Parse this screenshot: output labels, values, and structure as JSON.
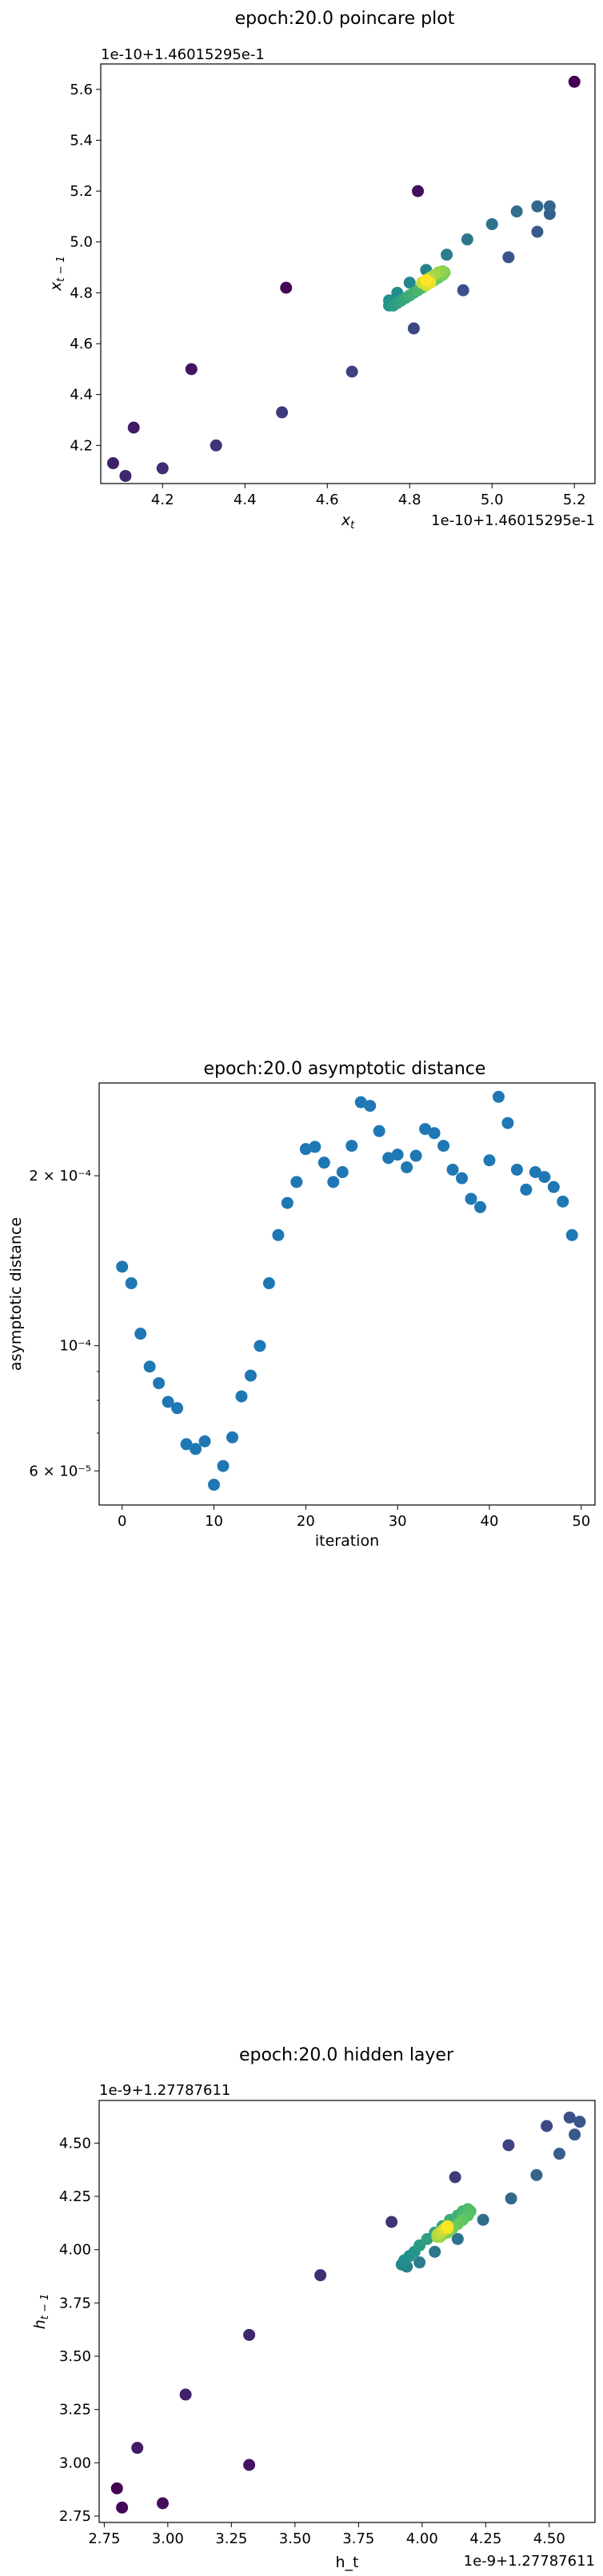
{
  "chart_data": [
    {
      "type": "scatter",
      "title": "epoch:20.0 poincare plot",
      "xlabel": "x_t",
      "ylabel": "x_{t-1}",
      "offset_x_label": "1e-10+1.46015295e-1",
      "offset_y_label": "1e-10+1.46015295e-1",
      "xticks": [
        "4.2",
        "4.4",
        "4.6",
        "4.8",
        "5.0",
        "5.2"
      ],
      "yticks": [
        "4.2",
        "4.4",
        "4.6",
        "4.8",
        "5.0",
        "5.2",
        "5.4",
        "5.6"
      ],
      "xlim": [
        4.05,
        5.25
      ],
      "ylim": [
        4.05,
        5.7
      ],
      "colormap": "viridis",
      "points": [
        {
          "x": 5.2,
          "y": 5.63,
          "c": 0.0
        },
        {
          "x": 4.5,
          "y": 4.82,
          "c": 0.02
        },
        {
          "x": 4.82,
          "y": 5.2,
          "c": 0.04
        },
        {
          "x": 4.27,
          "y": 4.5,
          "c": 0.06
        },
        {
          "x": 4.13,
          "y": 4.27,
          "c": 0.08
        },
        {
          "x": 4.08,
          "y": 4.13,
          "c": 0.1
        },
        {
          "x": 4.11,
          "y": 4.08,
          "c": 0.12
        },
        {
          "x": 4.2,
          "y": 4.11,
          "c": 0.14
        },
        {
          "x": 4.33,
          "y": 4.2,
          "c": 0.16
        },
        {
          "x": 4.49,
          "y": 4.33,
          "c": 0.18
        },
        {
          "x": 4.66,
          "y": 4.49,
          "c": 0.2
        },
        {
          "x": 4.81,
          "y": 4.66,
          "c": 0.22
        },
        {
          "x": 4.93,
          "y": 4.81,
          "c": 0.24
        },
        {
          "x": 5.04,
          "y": 4.94,
          "c": 0.26
        },
        {
          "x": 5.11,
          "y": 5.04,
          "c": 0.28
        },
        {
          "x": 5.14,
          "y": 5.11,
          "c": 0.3
        },
        {
          "x": 5.14,
          "y": 5.14,
          "c": 0.32
        },
        {
          "x": 5.11,
          "y": 5.14,
          "c": 0.34
        },
        {
          "x": 5.06,
          "y": 5.12,
          "c": 0.36
        },
        {
          "x": 5.0,
          "y": 5.07,
          "c": 0.38
        },
        {
          "x": 4.94,
          "y": 5.01,
          "c": 0.4
        },
        {
          "x": 4.89,
          "y": 4.95,
          "c": 0.42
        },
        {
          "x": 4.84,
          "y": 4.89,
          "c": 0.44
        },
        {
          "x": 4.8,
          "y": 4.84,
          "c": 0.46
        },
        {
          "x": 4.77,
          "y": 4.8,
          "c": 0.48
        },
        {
          "x": 4.75,
          "y": 4.77,
          "c": 0.5
        },
        {
          "x": 4.75,
          "y": 4.75,
          "c": 0.52
        },
        {
          "x": 4.76,
          "y": 4.75,
          "c": 0.54
        },
        {
          "x": 4.77,
          "y": 4.76,
          "c": 0.56
        },
        {
          "x": 4.78,
          "y": 4.77,
          "c": 0.58
        },
        {
          "x": 4.79,
          "y": 4.78,
          "c": 0.6
        },
        {
          "x": 4.8,
          "y": 4.79,
          "c": 0.62
        },
        {
          "x": 4.81,
          "y": 4.8,
          "c": 0.64
        },
        {
          "x": 4.82,
          "y": 4.81,
          "c": 0.66
        },
        {
          "x": 4.83,
          "y": 4.82,
          "c": 0.68
        },
        {
          "x": 4.84,
          "y": 4.83,
          "c": 0.7
        },
        {
          "x": 4.85,
          "y": 4.84,
          "c": 0.72
        },
        {
          "x": 4.86,
          "y": 4.85,
          "c": 0.74
        },
        {
          "x": 4.87,
          "y": 4.86,
          "c": 0.76
        },
        {
          "x": 4.88,
          "y": 4.87,
          "c": 0.78
        },
        {
          "x": 4.885,
          "y": 4.88,
          "c": 0.8
        },
        {
          "x": 4.88,
          "y": 4.885,
          "c": 0.82
        },
        {
          "x": 4.87,
          "y": 4.88,
          "c": 0.84
        },
        {
          "x": 4.86,
          "y": 4.87,
          "c": 0.86
        },
        {
          "x": 4.85,
          "y": 4.86,
          "c": 0.88
        },
        {
          "x": 4.84,
          "y": 4.85,
          "c": 0.9
        },
        {
          "x": 4.83,
          "y": 4.84,
          "c": 0.92
        },
        {
          "x": 4.84,
          "y": 4.83,
          "c": 0.94
        },
        {
          "x": 4.85,
          "y": 4.84,
          "c": 0.97
        },
        {
          "x": 4.84,
          "y": 4.85,
          "c": 1.0
        }
      ]
    },
    {
      "type": "scatter",
      "title": "epoch:20.0 asymptotic distance",
      "xlabel": "iteration",
      "ylabel": "asymptotic distance",
      "yscale": "log",
      "color": "#1f77b4",
      "xticks": [
        "0",
        "10",
        "20",
        "30",
        "40",
        "50"
      ],
      "yticks": [
        "6 × 10⁻⁵",
        "10⁻⁴",
        "2 × 10⁻⁴"
      ],
      "xlim": [
        -2.5,
        51.5
      ],
      "ylim": [
        5.22e-05,
        0.000292
      ],
      "x": [
        0,
        1,
        2,
        3,
        4,
        5,
        6,
        7,
        8,
        9,
        10,
        11,
        12,
        13,
        14,
        15,
        16,
        17,
        18,
        19,
        20,
        21,
        22,
        23,
        24,
        25,
        26,
        27,
        28,
        29,
        30,
        31,
        32,
        33,
        34,
        35,
        36,
        37,
        38,
        39,
        40,
        41,
        42,
        43,
        44,
        45,
        46,
        47,
        48,
        49
      ],
      "y": [
        0.000138,
        0.000129,
        0.000105,
        9.18e-05,
        8.58e-05,
        7.95e-05,
        7.75e-05,
        6.69e-05,
        6.56e-05,
        6.77e-05,
        5.67e-05,
        6.12e-05,
        6.88e-05,
        8.13e-05,
        8.85e-05,
        9.99e-05,
        0.000129,
        0.000157,
        0.000179,
        0.000195,
        0.000223,
        0.000225,
        0.000211,
        0.000195,
        0.000203,
        0.000226,
        0.00027,
        0.000266,
        0.00024,
        0.000215,
        0.000218,
        0.000207,
        0.000217,
        0.000242,
        0.000238,
        0.000226,
        0.000205,
        0.000198,
        0.000182,
        0.000176,
        0.000213,
        0.000276,
        0.000248,
        0.000205,
        0.000189,
        0.000203,
        0.000199,
        0.000191,
        0.00018,
        0.000157
      ]
    },
    {
      "type": "scatter",
      "title": "epoch:20.0 hidden layer",
      "xlabel": "h_t",
      "ylabel": "h_{t-1}",
      "offset_x_label": "1e-9+1.27787611",
      "offset_y_label": "1e-9+1.27787611",
      "xticks": [
        "2.75",
        "3.00",
        "3.25",
        "3.50",
        "3.75",
        "4.00",
        "4.25",
        "4.50"
      ],
      "yticks": [
        "2.75",
        "3.00",
        "3.25",
        "3.50",
        "3.75",
        "4.00",
        "4.25",
        "4.50"
      ],
      "xlim": [
        2.73,
        4.68
      ],
      "ylim": [
        2.72,
        4.7
      ],
      "colormap": "viridis",
      "points": [
        {
          "x": 2.8,
          "y": 2.88,
          "c": 0.0
        },
        {
          "x": 2.82,
          "y": 2.79,
          "c": 0.02
        },
        {
          "x": 2.98,
          "y": 2.81,
          "c": 0.04
        },
        {
          "x": 3.32,
          "y": 2.99,
          "c": 0.06
        },
        {
          "x": 2.88,
          "y": 3.07,
          "c": 0.08
        },
        {
          "x": 3.07,
          "y": 3.32,
          "c": 0.1
        },
        {
          "x": 3.32,
          "y": 3.6,
          "c": 0.12
        },
        {
          "x": 3.6,
          "y": 3.88,
          "c": 0.14
        },
        {
          "x": 3.88,
          "y": 4.13,
          "c": 0.16
        },
        {
          "x": 4.13,
          "y": 4.34,
          "c": 0.18
        },
        {
          "x": 4.34,
          "y": 4.49,
          "c": 0.2
        },
        {
          "x": 4.49,
          "y": 4.58,
          "c": 0.22
        },
        {
          "x": 4.58,
          "y": 4.62,
          "c": 0.24
        },
        {
          "x": 4.62,
          "y": 4.6,
          "c": 0.26
        },
        {
          "x": 4.6,
          "y": 4.54,
          "c": 0.28
        },
        {
          "x": 4.54,
          "y": 4.45,
          "c": 0.3
        },
        {
          "x": 4.45,
          "y": 4.35,
          "c": 0.32
        },
        {
          "x": 4.35,
          "y": 4.24,
          "c": 0.34
        },
        {
          "x": 4.24,
          "y": 4.14,
          "c": 0.36
        },
        {
          "x": 4.14,
          "y": 4.05,
          "c": 0.38
        },
        {
          "x": 4.05,
          "y": 3.99,
          "c": 0.4
        },
        {
          "x": 3.99,
          "y": 3.94,
          "c": 0.42
        },
        {
          "x": 3.94,
          "y": 3.92,
          "c": 0.44
        },
        {
          "x": 3.92,
          "y": 3.93,
          "c": 0.46
        },
        {
          "x": 3.93,
          "y": 3.95,
          "c": 0.48
        },
        {
          "x": 3.95,
          "y": 3.97,
          "c": 0.5
        },
        {
          "x": 3.97,
          "y": 3.99,
          "c": 0.52
        },
        {
          "x": 3.99,
          "y": 4.02,
          "c": 0.54
        },
        {
          "x": 4.02,
          "y": 4.05,
          "c": 0.56
        },
        {
          "x": 4.05,
          "y": 4.08,
          "c": 0.58
        },
        {
          "x": 4.08,
          "y": 4.11,
          "c": 0.6
        },
        {
          "x": 4.11,
          "y": 4.14,
          "c": 0.62
        },
        {
          "x": 4.14,
          "y": 4.16,
          "c": 0.64
        },
        {
          "x": 4.16,
          "y": 4.18,
          "c": 0.66
        },
        {
          "x": 4.18,
          "y": 4.19,
          "c": 0.68
        },
        {
          "x": 4.19,
          "y": 4.18,
          "c": 0.7
        },
        {
          "x": 4.18,
          "y": 4.16,
          "c": 0.72
        },
        {
          "x": 4.16,
          "y": 4.14,
          "c": 0.74
        },
        {
          "x": 4.14,
          "y": 4.12,
          "c": 0.76
        },
        {
          "x": 4.12,
          "y": 4.1,
          "c": 0.78
        },
        {
          "x": 4.1,
          "y": 4.08,
          "c": 0.8
        },
        {
          "x": 4.08,
          "y": 4.07,
          "c": 0.82
        },
        {
          "x": 4.07,
          "y": 4.06,
          "c": 0.84
        },
        {
          "x": 4.06,
          "y": 4.06,
          "c": 0.86
        },
        {
          "x": 4.06,
          "y": 4.07,
          "c": 0.88
        },
        {
          "x": 4.07,
          "y": 4.08,
          "c": 0.9
        },
        {
          "x": 4.08,
          "y": 4.09,
          "c": 0.92
        },
        {
          "x": 4.09,
          "y": 4.1,
          "c": 0.95
        },
        {
          "x": 4.1,
          "y": 4.1,
          "c": 0.98
        },
        {
          "x": 4.1,
          "y": 4.11,
          "c": 1.0
        }
      ]
    }
  ]
}
